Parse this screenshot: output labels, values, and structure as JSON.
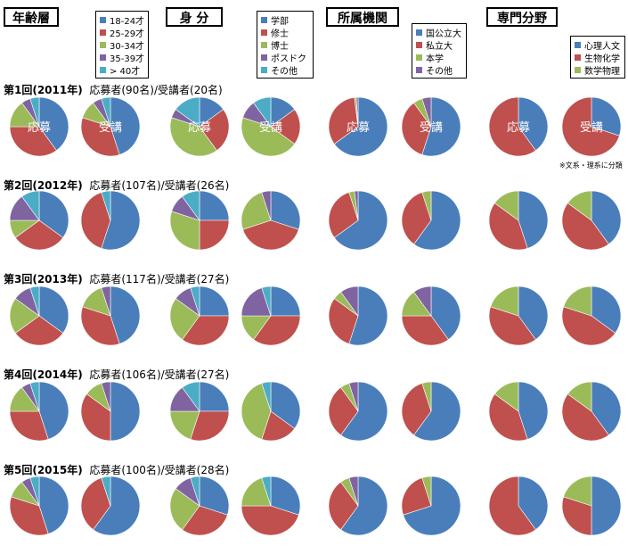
{
  "colors": {
    "blue": "#4a7ebb",
    "red": "#c0504d",
    "green": "#9bbb59",
    "purple": "#8064a2",
    "cyan": "#4bacc6"
  },
  "categories": [
    {
      "key": "age",
      "title": "年齢層",
      "legend": [
        {
          "label": "18-24才",
          "color": "#4a7ebb"
        },
        {
          "label": "25-29才",
          "color": "#c0504d"
        },
        {
          "label": "30-34才",
          "color": "#9bbb59"
        },
        {
          "label": "35-39才",
          "color": "#8064a2"
        },
        {
          "label": "> 40才",
          "color": "#4bacc6"
        }
      ]
    },
    {
      "key": "status",
      "title": "身  分",
      "legend": [
        {
          "label": "学部",
          "color": "#4a7ebb"
        },
        {
          "label": "修士",
          "color": "#c0504d"
        },
        {
          "label": "博士",
          "color": "#9bbb59"
        },
        {
          "label": "ポスドク",
          "color": "#8064a2"
        },
        {
          "label": "その他",
          "color": "#4bacc6"
        }
      ]
    },
    {
      "key": "affiliation",
      "title": "所属機関",
      "legend": [
        {
          "label": "国公立大",
          "color": "#4a7ebb"
        },
        {
          "label": "私立大",
          "color": "#c0504d"
        },
        {
          "label": "本学",
          "color": "#9bbb59"
        },
        {
          "label": "その他",
          "color": "#8064a2"
        }
      ]
    },
    {
      "key": "field",
      "title": "専門分野",
      "legend": [
        {
          "label": "心理人文",
          "color": "#4a7ebb"
        },
        {
          "label": "生物化学",
          "color": "#c0504d"
        },
        {
          "label": "数学物理",
          "color": "#9bbb59"
        }
      ]
    }
  ],
  "rows": [
    {
      "title": "第1回(2011年)",
      "counts": "応募者(90名)/受講者(20名)"
    },
    {
      "title": "第2回(2012年)",
      "counts": "応募者(107名)/受講者(26名)"
    },
    {
      "title": "第3回(2013年)",
      "counts": "応募者(117名)/受講者(27名)"
    },
    {
      "title": "第4回(2014年)",
      "counts": "応募者(106名)/受講者(27名)"
    },
    {
      "title": "第5回(2015年)",
      "counts": "応募者(100名)/受講者(28名)"
    }
  ],
  "pie_labels": {
    "applicants": "応募",
    "attendees": "受講"
  },
  "note": "※文系・理系に分類",
  "chart_data": {
    "type": "pie",
    "series_order": [
      "applicants",
      "attendees"
    ],
    "values": [
      {
        "age": {
          "applicants": [
            40,
            35,
            15,
            5,
            5
          ],
          "attendees": [
            45,
            35,
            10,
            5,
            5
          ]
        },
        "status": {
          "applicants": [
            15,
            25,
            40,
            5,
            15
          ],
          "attendees": [
            15,
            20,
            45,
            10,
            10
          ]
        },
        "affiliation": {
          "applicants": [
            65,
            33,
            1,
            1
          ],
          "attendees": [
            55,
            35,
            5,
            5
          ]
        },
        "field": {
          "applicants": [
            40,
            60,
            0
          ],
          "attendees": [
            30,
            70,
            0
          ]
        }
      },
      {
        "age": {
          "applicants": [
            35,
            30,
            10,
            15,
            10
          ],
          "attendees": [
            55,
            40,
            0,
            0,
            5
          ]
        },
        "status": {
          "applicants": [
            25,
            25,
            30,
            10,
            10
          ],
          "attendees": [
            30,
            40,
            25,
            5,
            0
          ]
        },
        "affiliation": {
          "applicants": [
            65,
            30,
            3,
            2
          ],
          "attendees": [
            60,
            35,
            5,
            0
          ]
        },
        "field": {
          "applicants": [
            45,
            40,
            15
          ],
          "attendees": [
            40,
            45,
            15
          ]
        }
      },
      {
        "age": {
          "applicants": [
            35,
            30,
            20,
            10,
            5
          ],
          "attendees": [
            45,
            35,
            15,
            5,
            0
          ]
        },
        "status": {
          "applicants": [
            25,
            35,
            25,
            10,
            5
          ],
          "attendees": [
            25,
            35,
            15,
            20,
            5
          ]
        },
        "affiliation": {
          "applicants": [
            55,
            30,
            5,
            10
          ],
          "attendees": [
            40,
            35,
            15,
            10
          ]
        },
        "field": {
          "applicants": [
            40,
            40,
            20
          ],
          "attendees": [
            35,
            45,
            20
          ]
        }
      },
      {
        "age": {
          "applicants": [
            45,
            30,
            15,
            5,
            5
          ],
          "attendees": [
            50,
            35,
            10,
            5,
            0
          ]
        },
        "status": {
          "applicants": [
            25,
            30,
            20,
            15,
            10
          ],
          "attendees": [
            35,
            20,
            40,
            0,
            5
          ]
        },
        "affiliation": {
          "applicants": [
            60,
            30,
            5,
            5
          ],
          "attendees": [
            60,
            35,
            5,
            0
          ]
        },
        "field": {
          "applicants": [
            45,
            40,
            15
          ],
          "attendees": [
            40,
            45,
            15
          ]
        }
      },
      {
        "age": {
          "applicants": [
            45,
            35,
            10,
            5,
            5
          ],
          "attendees": [
            60,
            35,
            0,
            0,
            5
          ]
        },
        "status": {
          "applicants": [
            30,
            30,
            25,
            10,
            5
          ],
          "attendees": [
            30,
            45,
            20,
            0,
            5
          ]
        },
        "affiliation": {
          "applicants": [
            60,
            30,
            5,
            5
          ],
          "attendees": [
            70,
            25,
            5,
            0
          ]
        },
        "field": {
          "applicants": [
            40,
            60,
            0
          ],
          "attendees": [
            50,
            30,
            20
          ]
        }
      }
    ]
  }
}
